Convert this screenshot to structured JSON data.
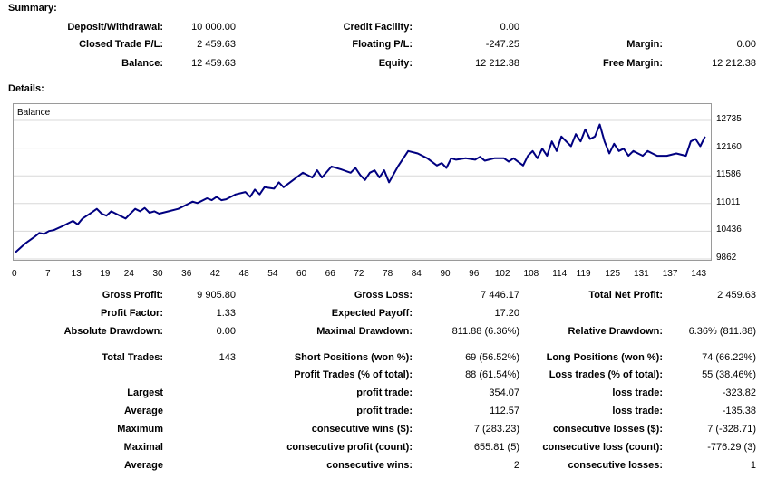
{
  "summary": {
    "title": "Summary:",
    "deposit_label": "Deposit/Withdrawal:",
    "deposit_value": "10 000.00",
    "closed_label": "Closed Trade P/L:",
    "closed_value": "2 459.63",
    "balance_label": "Balance:",
    "balance_value": "12 459.63",
    "credit_label": "Credit Facility:",
    "credit_value": "0.00",
    "floating_label": "Floating P/L:",
    "floating_value": "-247.25",
    "equity_label": "Equity:",
    "equity_value": "12 212.38",
    "margin_label": "Margin:",
    "margin_value": "0.00",
    "free_margin_label": "Free Margin:",
    "free_margin_value": "12 212.38"
  },
  "details": {
    "title": "Details:",
    "gross_profit_label": "Gross Profit:",
    "gross_profit_value": "9 905.80",
    "gross_loss_label": "Gross Loss:",
    "gross_loss_value": "7 446.17",
    "total_net_label": "Total Net Profit:",
    "total_net_value": "2 459.63",
    "profit_factor_label": "Profit Factor:",
    "profit_factor_value": "1.33",
    "expected_payoff_label": "Expected Payoff:",
    "expected_payoff_value": "17.20",
    "abs_drawdown_label": "Absolute Drawdown:",
    "abs_drawdown_value": "0.00",
    "max_drawdown_label": "Maximal Drawdown:",
    "max_drawdown_value": "811.88 (6.36%)",
    "rel_drawdown_label": "Relative Drawdown:",
    "rel_drawdown_value": "6.36% (811.88)",
    "total_trades_label": "Total Trades:",
    "total_trades_value": "143",
    "short_label": "Short Positions (won %):",
    "short_value": "69 (56.52%)",
    "long_label": "Long Positions (won %):",
    "long_value": "74 (66.22%)",
    "profit_trades_label": "Profit Trades (% of total):",
    "profit_trades_value": "88 (61.54%)",
    "loss_trades_label": "Loss trades (% of total):",
    "loss_trades_value": "55 (38.46%)",
    "largest_label": "Largest",
    "largest_profit_label": "profit trade:",
    "largest_profit_value": "354.07",
    "largest_loss_label": "loss trade:",
    "largest_loss_value": "-323.82",
    "average_label": "Average",
    "avg_profit_label": "profit trade:",
    "avg_profit_value": "112.57",
    "avg_loss_label": "loss trade:",
    "avg_loss_value": "-135.38",
    "maximum_label": "Maximum",
    "max_cons_wins_label": "consecutive wins ($):",
    "max_cons_wins_value": "7 (283.23)",
    "max_cons_losses_label": "consecutive losses ($):",
    "max_cons_losses_value": "7 (-328.71)",
    "maximal_label": "Maximal",
    "maximal_profit_label": "consecutive profit (count):",
    "maximal_profit_value": "655.81 (5)",
    "maximal_loss_label": "consecutive loss (count):",
    "maximal_loss_value": "-776.29 (3)",
    "average2_label": "Average",
    "avg_cons_wins_label": "consecutive wins:",
    "avg_cons_wins_value": "2",
    "avg_cons_losses_label": "consecutive losses:",
    "avg_cons_losses_value": "1"
  },
  "chart_data": {
    "type": "line",
    "title": "Balance",
    "line_color": "#000080",
    "xlim": [
      0,
      145
    ],
    "ylim": [
      9862,
      12900
    ],
    "x_ticks": [
      "0",
      "7",
      "13",
      "19",
      "24",
      "30",
      "36",
      "42",
      "48",
      "54",
      "60",
      "66",
      "72",
      "78",
      "84",
      "90",
      "96",
      "102",
      "108",
      "114",
      "119",
      "125",
      "131",
      "137",
      "143"
    ],
    "y_ticks": [
      "12735",
      "12160",
      "11586",
      "11011",
      "10436",
      "9862"
    ],
    "series": [
      {
        "name": "Balance",
        "x": [
          0,
          2,
          4,
          5,
          6,
          7,
          8,
          10,
          12,
          13,
          14,
          16,
          17,
          18,
          19,
          20,
          22,
          23,
          24,
          25,
          26,
          27,
          28,
          29,
          30,
          32,
          34,
          36,
          37,
          38,
          40,
          41,
          42,
          43,
          44,
          46,
          48,
          49,
          50,
          51,
          52,
          54,
          55,
          56,
          58,
          60,
          61,
          62,
          63,
          64,
          66,
          68,
          70,
          71,
          72,
          73,
          74,
          75,
          76,
          77,
          78,
          80,
          82,
          84,
          86,
          88,
          89,
          90,
          91,
          92,
          94,
          96,
          97,
          98,
          100,
          102,
          103,
          104,
          106,
          107,
          108,
          109,
          110,
          111,
          112,
          113,
          114,
          116,
          117,
          118,
          119,
          120,
          121,
          122,
          123,
          124,
          125,
          126,
          127,
          128,
          129,
          130,
          131,
          132,
          133,
          134,
          136,
          138,
          140,
          141,
          142,
          143,
          144
        ],
        "y": [
          10000,
          10180,
          10320,
          10400,
          10380,
          10440,
          10460,
          10550,
          10650,
          10580,
          10700,
          10830,
          10900,
          10800,
          10760,
          10850,
          10750,
          10700,
          10800,
          10900,
          10850,
          10920,
          10820,
          10850,
          10800,
          10850,
          10900,
          11000,
          11050,
          11020,
          11120,
          11080,
          11150,
          11080,
          11100,
          11200,
          11250,
          11150,
          11300,
          11200,
          11350,
          11320,
          11450,
          11350,
          11500,
          11650,
          11600,
          11550,
          11700,
          11550,
          11780,
          11720,
          11650,
          11750,
          11600,
          11500,
          11650,
          11700,
          11550,
          11700,
          11450,
          11800,
          12100,
          12050,
          11950,
          11800,
          11850,
          11750,
          11950,
          11920,
          11950,
          11920,
          11980,
          11900,
          11950,
          11950,
          11880,
          11950,
          11800,
          12000,
          12100,
          11950,
          12150,
          12000,
          12300,
          12100,
          12400,
          12200,
          12450,
          12300,
          12550,
          12350,
          12400,
          12650,
          12300,
          12050,
          12250,
          12100,
          12150,
          12000,
          12100,
          12050,
          12000,
          12100,
          12050,
          12000,
          12000,
          12050,
          12000,
          12300,
          12350,
          12200,
          12400
        ]
      }
    ]
  }
}
